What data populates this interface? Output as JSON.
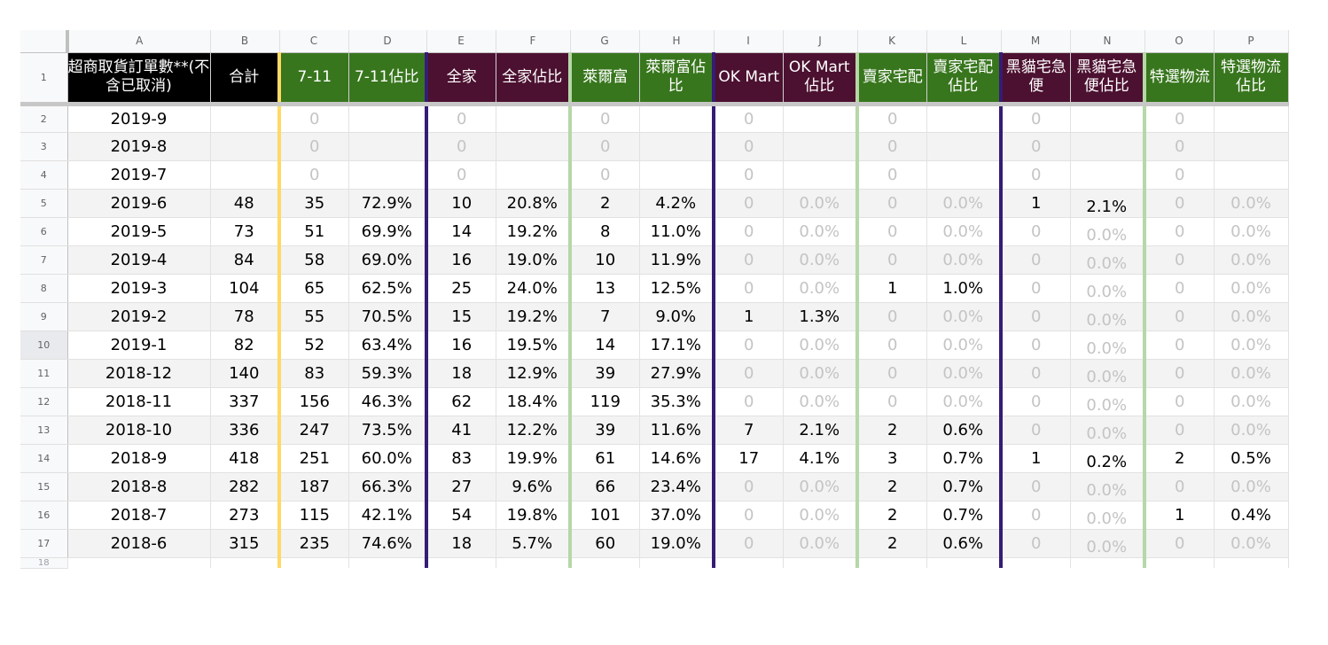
{
  "columns": [
    "A",
    "B",
    "C",
    "D",
    "E",
    "F",
    "G",
    "H",
    "I",
    "J",
    "K",
    "L",
    "M",
    "N",
    "O",
    "P"
  ],
  "header": [
    "超商取貨訂單數**(不含已取消)",
    "合計",
    "7-11",
    "7-11佔比",
    "全家",
    "全家佔比",
    "萊爾富",
    "萊爾富佔比",
    "OK Mart",
    "OK Mart佔比",
    "賣家宅配",
    "賣家宅配佔比",
    "黑貓宅急便",
    "黑貓宅急便佔比",
    "特選物流",
    "特選物流佔比"
  ],
  "rows": [
    {
      "num": "2",
      "cells": [
        "2019-9",
        "",
        "0",
        "",
        "0",
        "",
        "0",
        "",
        "0",
        "",
        "0",
        "",
        "0",
        "",
        "0",
        ""
      ]
    },
    {
      "num": "3",
      "cells": [
        "2019-8",
        "",
        "0",
        "",
        "0",
        "",
        "0",
        "",
        "0",
        "",
        "0",
        "",
        "0",
        "",
        "0",
        ""
      ]
    },
    {
      "num": "4",
      "cells": [
        "2019-7",
        "",
        "0",
        "",
        "0",
        "",
        "0",
        "",
        "0",
        "",
        "0",
        "",
        "0",
        "",
        "0",
        ""
      ]
    },
    {
      "num": "5",
      "cells": [
        "2019-6",
        "48",
        "35",
        "72.9%",
        "10",
        "20.8%",
        "2",
        "4.2%",
        "0",
        "0.0%",
        "0",
        "0.0%",
        "1",
        "2.1%",
        "0",
        "0.0%"
      ]
    },
    {
      "num": "6",
      "cells": [
        "2019-5",
        "73",
        "51",
        "69.9%",
        "14",
        "19.2%",
        "8",
        "11.0%",
        "0",
        "0.0%",
        "0",
        "0.0%",
        "0",
        "0.0%",
        "0",
        "0.0%"
      ]
    },
    {
      "num": "7",
      "cells": [
        "2019-4",
        "84",
        "58",
        "69.0%",
        "16",
        "19.0%",
        "10",
        "11.9%",
        "0",
        "0.0%",
        "0",
        "0.0%",
        "0",
        "0.0%",
        "0",
        "0.0%"
      ]
    },
    {
      "num": "8",
      "cells": [
        "2019-3",
        "104",
        "65",
        "62.5%",
        "25",
        "24.0%",
        "13",
        "12.5%",
        "0",
        "0.0%",
        "1",
        "1.0%",
        "0",
        "0.0%",
        "0",
        "0.0%"
      ]
    },
    {
      "num": "9",
      "cells": [
        "2019-2",
        "78",
        "55",
        "70.5%",
        "15",
        "19.2%",
        "7",
        "9.0%",
        "1",
        "1.3%",
        "0",
        "0.0%",
        "0",
        "0.0%",
        "0",
        "0.0%"
      ]
    },
    {
      "num": "10",
      "cells": [
        "2019-1",
        "82",
        "52",
        "63.4%",
        "16",
        "19.5%",
        "14",
        "17.1%",
        "0",
        "0.0%",
        "0",
        "0.0%",
        "0",
        "0.0%",
        "0",
        "0.0%"
      ]
    },
    {
      "num": "11",
      "cells": [
        "2018-12",
        "140",
        "83",
        "59.3%",
        "18",
        "12.9%",
        "39",
        "27.9%",
        "0",
        "0.0%",
        "0",
        "0.0%",
        "0",
        "0.0%",
        "0",
        "0.0%"
      ]
    },
    {
      "num": "12",
      "cells": [
        "2018-11",
        "337",
        "156",
        "46.3%",
        "62",
        "18.4%",
        "119",
        "35.3%",
        "0",
        "0.0%",
        "0",
        "0.0%",
        "0",
        "0.0%",
        "0",
        "0.0%"
      ]
    },
    {
      "num": "13",
      "cells": [
        "2018-10",
        "336",
        "247",
        "73.5%",
        "41",
        "12.2%",
        "39",
        "11.6%",
        "7",
        "2.1%",
        "2",
        "0.6%",
        "0",
        "0.0%",
        "0",
        "0.0%"
      ]
    },
    {
      "num": "14",
      "cells": [
        "2018-9",
        "418",
        "251",
        "60.0%",
        "83",
        "19.9%",
        "61",
        "14.6%",
        "17",
        "4.1%",
        "3",
        "0.7%",
        "1",
        "0.2%",
        "2",
        "0.5%"
      ]
    },
    {
      "num": "15",
      "cells": [
        "2018-8",
        "282",
        "187",
        "66.3%",
        "27",
        "9.6%",
        "66",
        "23.4%",
        "0",
        "0.0%",
        "2",
        "0.7%",
        "0",
        "0.0%",
        "0",
        "0.0%"
      ]
    },
    {
      "num": "16",
      "cells": [
        "2018-7",
        "273",
        "115",
        "42.1%",
        "54",
        "19.8%",
        "101",
        "37.0%",
        "0",
        "0.0%",
        "2",
        "0.7%",
        "0",
        "0.0%",
        "1",
        "0.4%"
      ]
    },
    {
      "num": "17",
      "cells": [
        "2018-6",
        "315",
        "235",
        "74.6%",
        "18",
        "5.7%",
        "60",
        "19.0%",
        "0",
        "0.0%",
        "2",
        "0.6%",
        "0",
        "0.0%",
        "0",
        "0.0%"
      ]
    }
  ],
  "cut_row_num": "18",
  "colors": {
    "black_header": "#000000",
    "green_header": "#38761d",
    "plum_header": "#4c1130",
    "separator_yellow": "#ffd966",
    "separator_purple": "#351c75",
    "separator_light_green": "#b6d7a8"
  }
}
